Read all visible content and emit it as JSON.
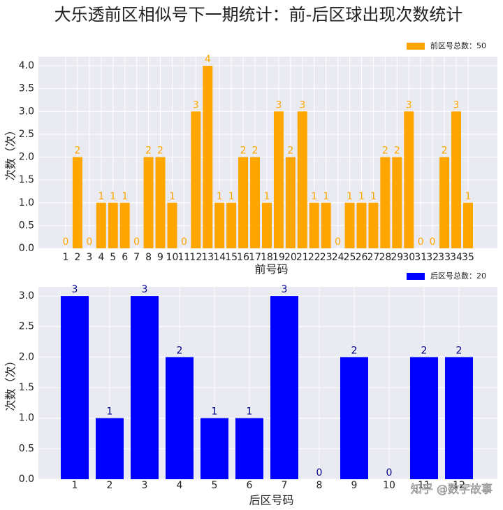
{
  "title": "大乐透前区相似号下一期统计：前-后区球出现次数统计",
  "watermark": "知乎 @数字故事",
  "chart_data": [
    {
      "type": "bar",
      "xlabel": "前号码",
      "ylabel": "次数（次）",
      "legend_label": "前区号总数：50",
      "legend": "upper right",
      "color": "#ffa500",
      "label_color": "#ffa500",
      "grid": true,
      "categories": [
        "1",
        "2",
        "3",
        "4",
        "5",
        "6",
        "7",
        "8",
        "9",
        "10",
        "11",
        "12",
        "13",
        "14",
        "15",
        "16",
        "17",
        "18",
        "19",
        "20",
        "21",
        "22",
        "23",
        "24",
        "25",
        "26",
        "27",
        "28",
        "29",
        "30",
        "31",
        "32",
        "33",
        "34",
        "35"
      ],
      "values": [
        0,
        2,
        0,
        1,
        1,
        1,
        0,
        2,
        2,
        1,
        0,
        3,
        4,
        1,
        1,
        2,
        2,
        1,
        3,
        2,
        3,
        1,
        1,
        0,
        1,
        1,
        1,
        2,
        2,
        3,
        0,
        0,
        2,
        3,
        1
      ],
      "ylim": [
        0,
        4.2
      ],
      "yticks": [
        {
          "value": 0,
          "label": "0.0"
        },
        {
          "value": 0.5,
          "label": "0.5"
        },
        {
          "value": 1,
          "label": "1.0"
        },
        {
          "value": 1.5,
          "label": "1.5"
        },
        {
          "value": 2,
          "label": "2.0"
        },
        {
          "value": 2.5,
          "label": "2.5"
        },
        {
          "value": 3,
          "label": "3.0"
        },
        {
          "value": 3.5,
          "label": "3.5"
        },
        {
          "value": 4,
          "label": "4.0"
        }
      ]
    },
    {
      "type": "bar",
      "xlabel": "后区号码",
      "ylabel": "次数（次）",
      "legend_label": "后区号总数：20",
      "legend": "upper right",
      "color": "#0000ff",
      "label_color": "#00008b",
      "grid": true,
      "categories": [
        "1",
        "2",
        "3",
        "4",
        "5",
        "6",
        "7",
        "8",
        "9",
        "10",
        "11",
        "12"
      ],
      "values": [
        3,
        1,
        3,
        2,
        1,
        1,
        3,
        0,
        2,
        0,
        2,
        2
      ],
      "ylim": [
        0,
        3.15
      ],
      "yticks": [
        {
          "value": 0,
          "label": "0.0"
        },
        {
          "value": 0.5,
          "label": "0.5"
        },
        {
          "value": 1,
          "label": "1.0"
        },
        {
          "value": 1.5,
          "label": "1.5"
        },
        {
          "value": 2,
          "label": "2.0"
        },
        {
          "value": 2.5,
          "label": "2.5"
        },
        {
          "value": 3,
          "label": "3.0"
        }
      ]
    }
  ]
}
